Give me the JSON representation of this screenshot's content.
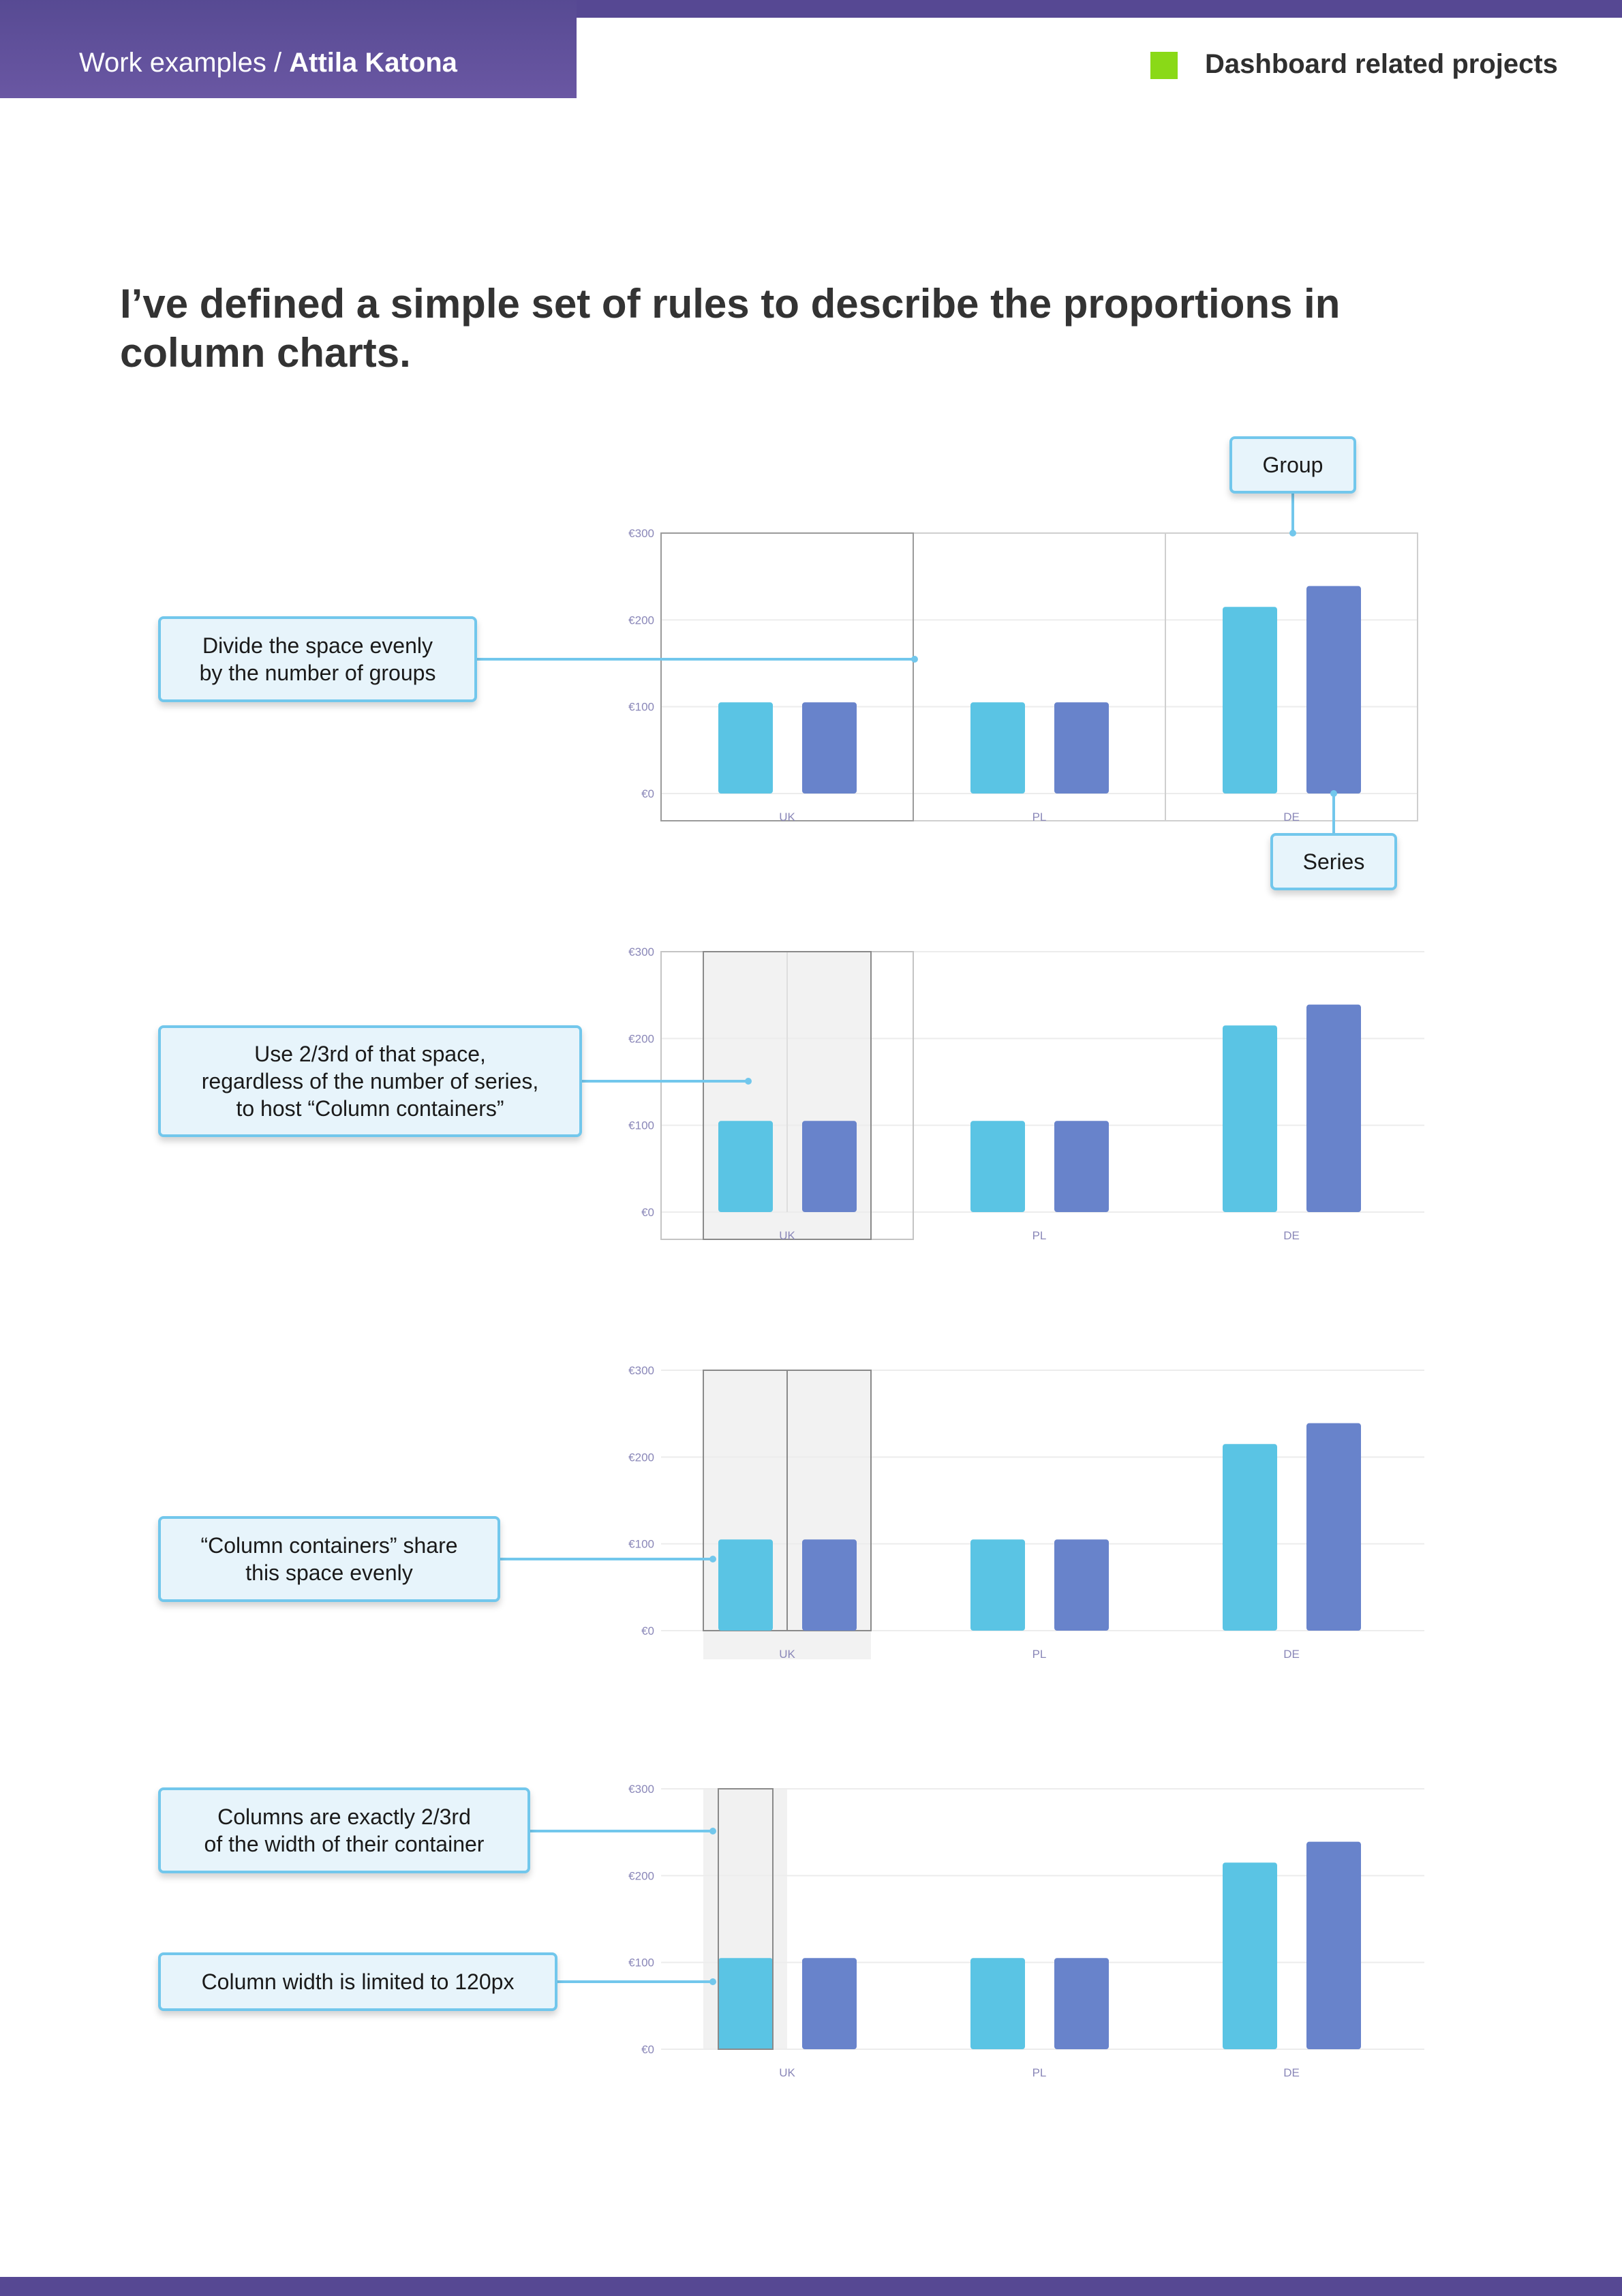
{
  "header": {
    "prefix": "Work examples / ",
    "author": "Attila Katona",
    "section_title": "Dashboard related projects",
    "accent_color": "#8ad917",
    "brand_color": "#564893"
  },
  "headline": "I’ve defined a simple set of rules to describe the proportions in column charts.",
  "callouts": {
    "group": "Group",
    "series": "Series",
    "divide": "Divide the space evenly\nby the number of groups",
    "use_two_thirds": "Use 2/3rd of that space,\nregardless of the number of series,\nto host “Column containers”",
    "share": "“Column containers” share\nthis space evenly",
    "columns_width": "Columns are exactly 2/3rd\nof the width of their container",
    "column_limit": "Column width is limited to 120px"
  },
  "chart_data": [
    {
      "type": "bar",
      "categories": [
        "UK",
        "PL",
        "DE"
      ],
      "yticks": [
        "€0",
        "€100",
        "€200",
        "€300"
      ],
      "ylim": [
        0,
        300
      ],
      "series": [
        {
          "values": [
            105,
            105,
            215
          ]
        },
        {
          "values": [
            105,
            105,
            239
          ]
        }
      ],
      "colors": [
        "#5ac4e4",
        "#6883cb"
      ],
      "title": "",
      "xlabel": "",
      "ylabel": ""
    },
    {
      "type": "bar",
      "categories": [
        "UK",
        "PL",
        "DE"
      ],
      "yticks": [
        "€0",
        "€100",
        "€200",
        "€300"
      ],
      "ylim": [
        0,
        300
      ],
      "series": [
        {
          "values": [
            105,
            105,
            215
          ]
        },
        {
          "values": [
            105,
            105,
            239
          ]
        }
      ],
      "colors": [
        "#5ac4e4",
        "#6883cb"
      ],
      "title": "",
      "xlabel": "",
      "ylabel": ""
    },
    {
      "type": "bar",
      "categories": [
        "UK",
        "PL",
        "DE"
      ],
      "yticks": [
        "€0",
        "€100",
        "€200",
        "€300"
      ],
      "ylim": [
        0,
        300
      ],
      "series": [
        {
          "values": [
            105,
            105,
            215
          ]
        },
        {
          "values": [
            105,
            105,
            239
          ]
        }
      ],
      "colors": [
        "#5ac4e4",
        "#6883cb"
      ],
      "title": "",
      "xlabel": "",
      "ylabel": ""
    },
    {
      "type": "bar",
      "categories": [
        "UK",
        "PL",
        "DE"
      ],
      "yticks": [
        "€0",
        "€100",
        "€200",
        "€300"
      ],
      "ylim": [
        0,
        300
      ],
      "series": [
        {
          "values": [
            105,
            105,
            215
          ]
        },
        {
          "values": [
            105,
            105,
            239
          ]
        }
      ],
      "colors": [
        "#5ac4e4",
        "#6883cb"
      ],
      "title": "",
      "xlabel": "",
      "ylabel": ""
    }
  ]
}
